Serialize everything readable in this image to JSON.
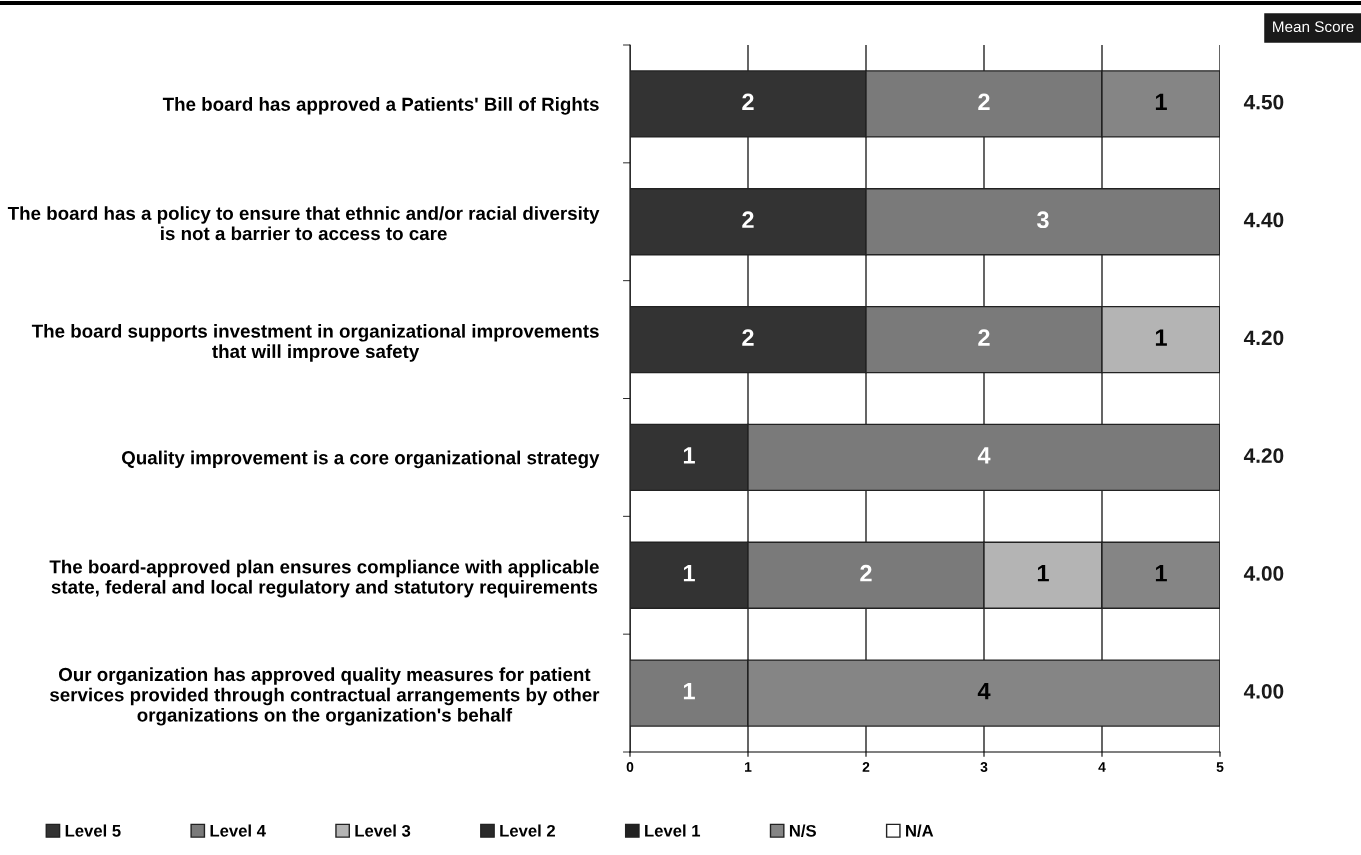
{
  "chart_data": {
    "type": "bar",
    "orientation": "horizontal",
    "stacked": true,
    "categories": [
      "The board has approved a Patients' Bill of Rights",
      "The board has a policy to ensure that ethnic and/or racial diversity is not a barrier to access to care",
      "The board supports investment in organizational improvements that will improve safety",
      "Quality improvement is a core organizational strategy",
      "The board-approved plan ensures compliance with applicable state, federal and local regulatory and statutory requirements",
      "Our organization has approved quality measures for patient services provided through contractual arrangements by other organizations on the organization's behalf"
    ],
    "series": [
      {
        "name": "Level 5",
        "color": "#333333",
        "values": [
          2,
          2,
          2,
          1,
          1,
          0
        ],
        "value_labels": [
          "2",
          "2",
          "2",
          "1",
          "1",
          null
        ]
      },
      {
        "name": "Level 4",
        "color": "#7a7a7a",
        "values": [
          2,
          3,
          2,
          4,
          2,
          1
        ],
        "value_labels": [
          "2",
          "3",
          "2",
          "4",
          "2",
          "1"
        ]
      },
      {
        "name": "Level 3",
        "color": "#b4b4b4",
        "values": [
          0,
          0,
          1,
          0,
          1,
          0
        ],
        "value_labels": [
          null,
          null,
          "1",
          null,
          "1",
          null
        ]
      },
      {
        "name": "Level 2",
        "color": "#2a2a2a",
        "values": [
          0,
          0,
          0,
          0,
          0,
          0
        ],
        "value_labels": [
          null,
          null,
          null,
          null,
          null,
          null
        ]
      },
      {
        "name": "Level 1",
        "color": "#222222",
        "values": [
          0,
          0,
          0,
          0,
          0,
          0
        ],
        "value_labels": [
          null,
          null,
          null,
          null,
          null,
          null
        ]
      },
      {
        "name": "N/S",
        "color": "#858585",
        "values": [
          1,
          0,
          0,
          0,
          1,
          4
        ],
        "value_labels": [
          "1",
          null,
          null,
          null,
          "1",
          "4"
        ]
      },
      {
        "name": "N/A",
        "color": "#ffffff",
        "values": [
          0,
          0,
          0,
          0,
          0,
          0
        ],
        "value_labels": [
          null,
          null,
          null,
          null,
          null,
          null
        ]
      }
    ],
    "xlim": [
      0,
      5
    ],
    "xticks": [
      0,
      1,
      2,
      3,
      4,
      5
    ],
    "grid": "x",
    "legend": "bottom",
    "annotations": [
      "Mean Score",
      "4.50",
      "4.40",
      "4.20",
      "4.20",
      "4.00",
      "4.00"
    ]
  }
}
